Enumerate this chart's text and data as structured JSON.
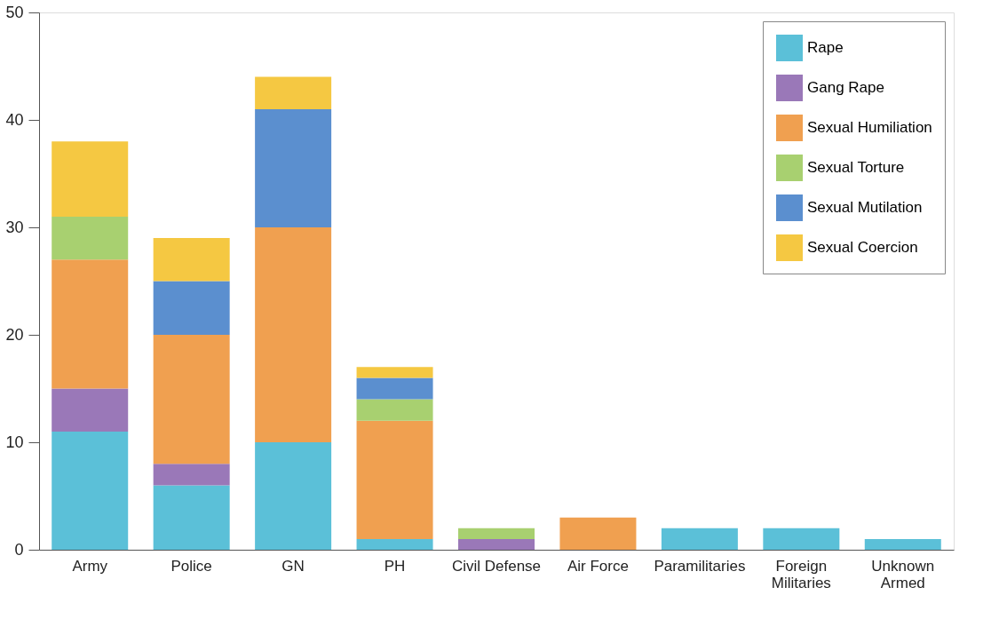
{
  "chart_data": {
    "type": "bar",
    "stacked": true,
    "categories": [
      "Army",
      "Police",
      "GN",
      "PH",
      "Civil Defense",
      "Air Force",
      "Paramilitaries",
      "Foreign\nMilitaries",
      "Unknown\nArmed"
    ],
    "series": [
      {
        "name": "Rape",
        "color": "#5bc0d8",
        "values": [
          11,
          6,
          10,
          1,
          null,
          null,
          2,
          2,
          1
        ]
      },
      {
        "name": "Gang Rape",
        "color": "#9a78b8",
        "values": [
          4,
          2,
          null,
          null,
          1,
          null,
          null,
          null,
          null
        ]
      },
      {
        "name": "Sexual Humiliation",
        "color": "#f0a050",
        "values": [
          12,
          12,
          20,
          11,
          null,
          3,
          null,
          null,
          null
        ]
      },
      {
        "name": "Sexual Torture",
        "color": "#a8d070",
        "values": [
          4,
          null,
          null,
          2,
          1,
          null,
          null,
          null,
          null
        ]
      },
      {
        "name": "Sexual Mutilation",
        "color": "#5b8fcf",
        "values": [
          null,
          5,
          11,
          2,
          null,
          null,
          null,
          null,
          null
        ]
      },
      {
        "name": "Sexual Coercion",
        "color": "#f5c842",
        "values": [
          7,
          4,
          3,
          1,
          null,
          null,
          null,
          null,
          null
        ]
      }
    ],
    "ylim": [
      0,
      50
    ],
    "yticks": [
      0,
      10,
      20,
      30,
      40,
      50
    ],
    "grid": false,
    "legend": "top right"
  }
}
